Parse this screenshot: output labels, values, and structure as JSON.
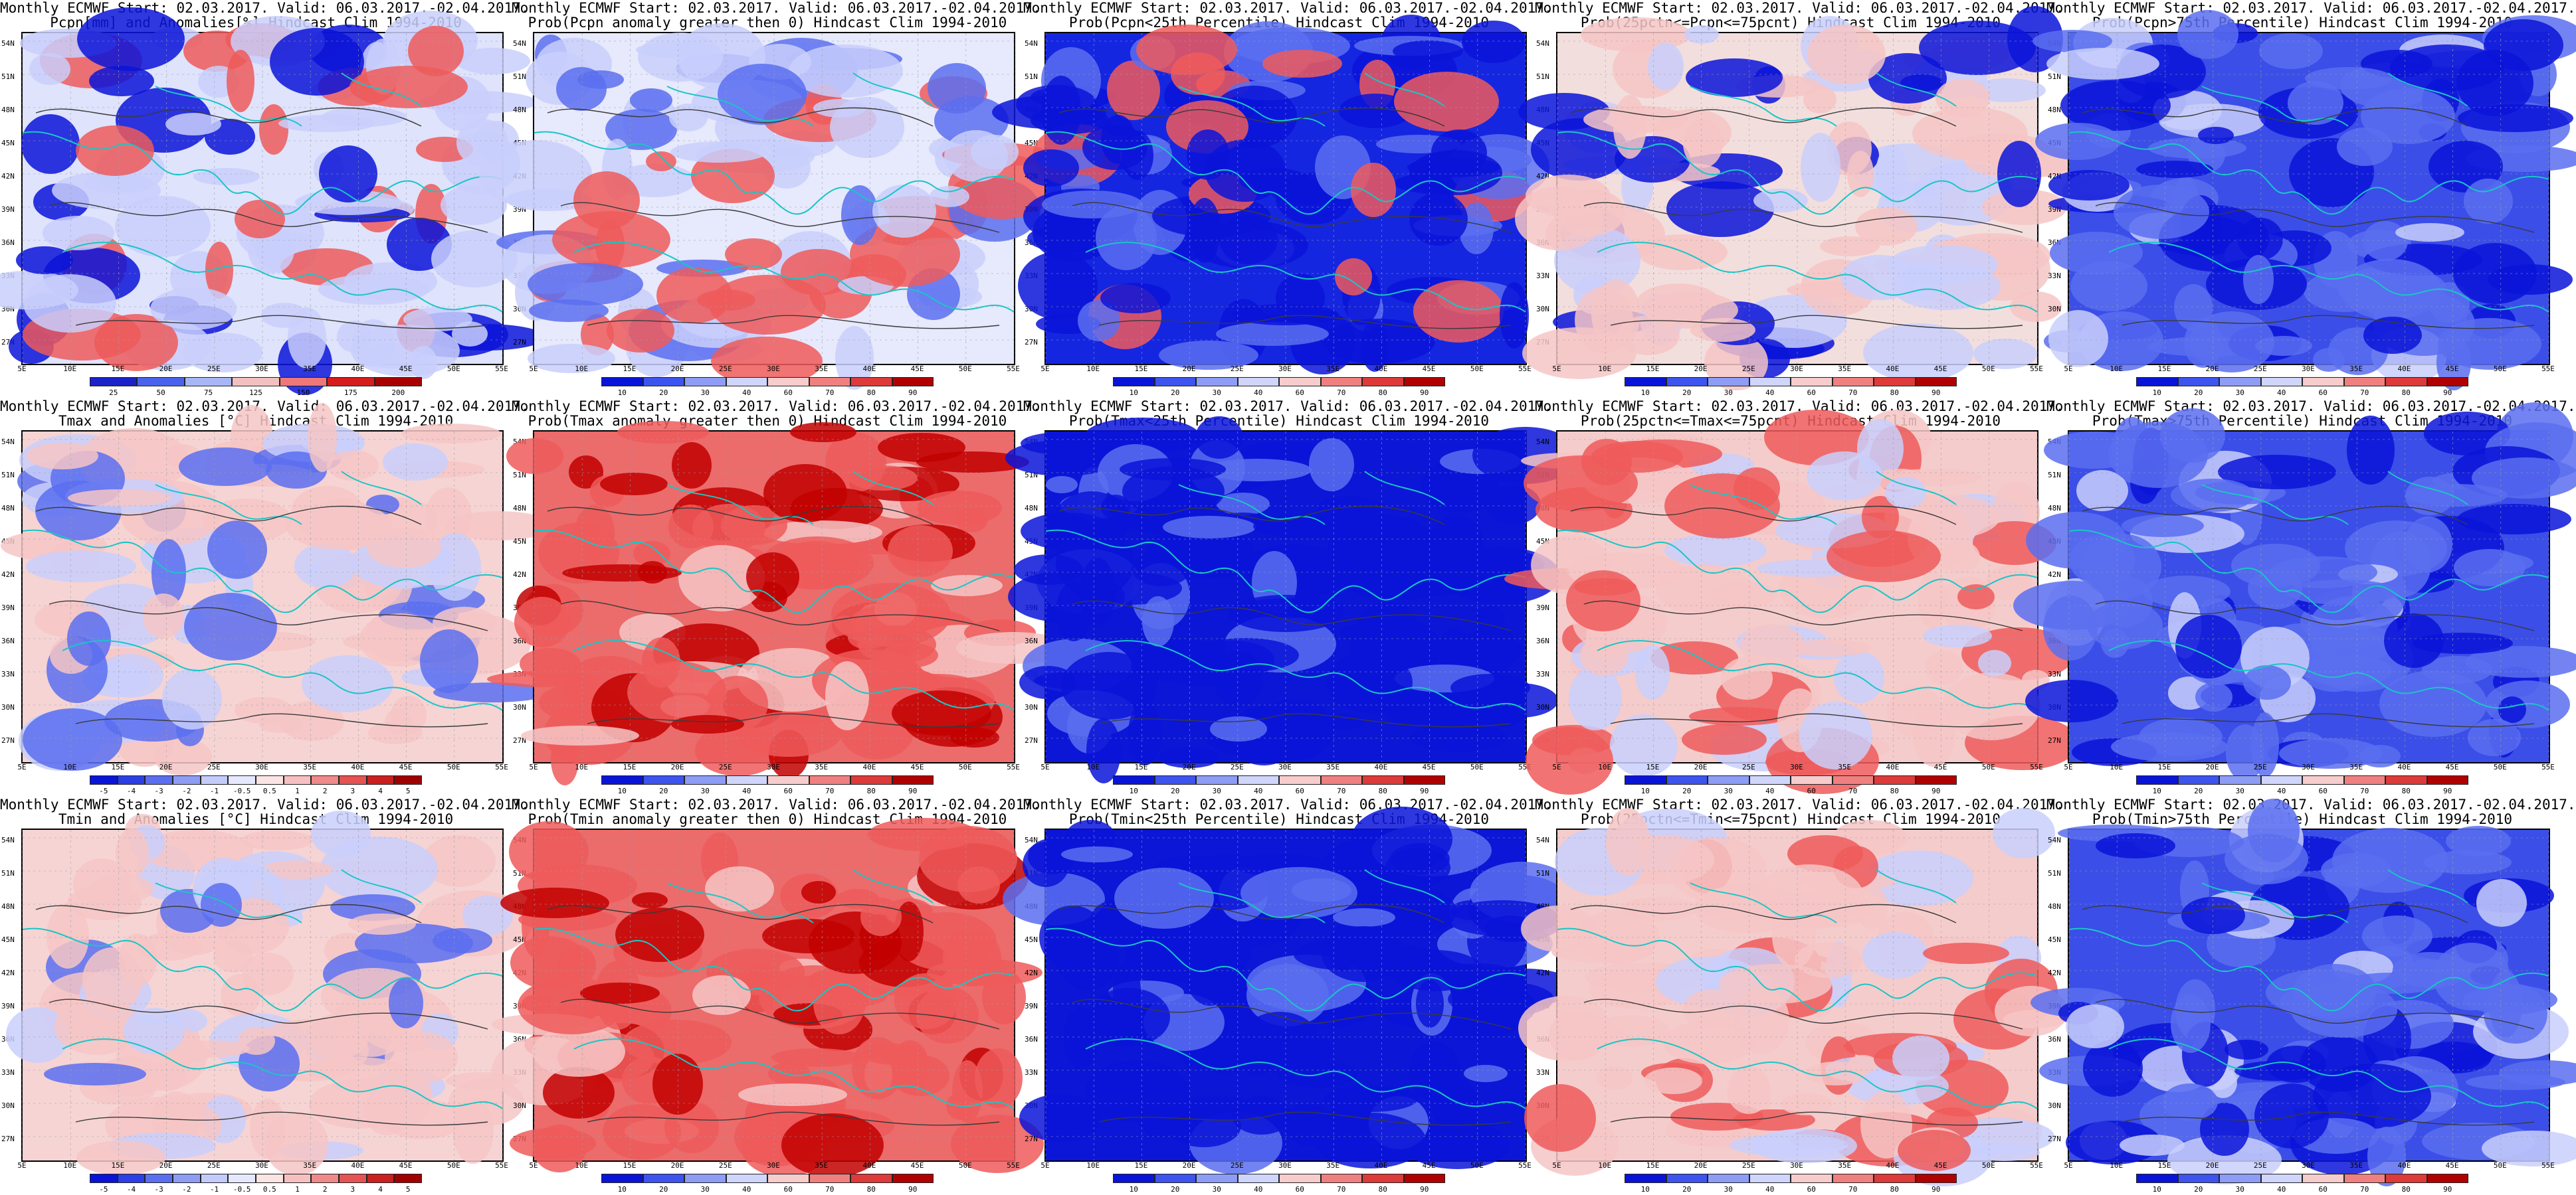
{
  "common": {
    "title_line1": "Monthly ECMWF Start: 02.03.2017. Valid: 06.03.2017.-02.04.2017.",
    "lat_labels": [
      "54N",
      "51N",
      "48N",
      "45N",
      "42N",
      "39N",
      "36N",
      "33N",
      "30N",
      "27N"
    ],
    "lon_labels": [
      "5E",
      "10E",
      "15E",
      "20E",
      "25E",
      "30E",
      "35E",
      "40E",
      "45E",
      "50E",
      "55E"
    ],
    "colors": {
      "land_contour": "#3a3a3a",
      "coast": "#19c6c6",
      "deep_blue": "#0a14d8",
      "mid_blue": "#5b6ff0",
      "light_blue": "#c9cffc",
      "light_red": "#f6c6c6",
      "mid_red": "#ef5a5a",
      "deep_red": "#c20000"
    }
  },
  "scales": {
    "pcpn": [
      "25",
      "50",
      "75",
      "125",
      "150",
      "175",
      "200"
    ],
    "prob": [
      "10",
      "20",
      "30",
      "40",
      "60",
      "70",
      "80",
      "90"
    ],
    "anom": [
      "-5",
      "-4",
      "-3",
      "-2",
      "-1",
      "-0.5",
      "0.5",
      "1",
      "2",
      "3",
      "4",
      "5"
    ]
  },
  "panels": [
    {
      "title2": "Pcpn[mm] and Anomalies[%] Hindcast Clim 1994-2010",
      "scale": "pcpn",
      "palette": "precip_anom"
    },
    {
      "title2": "Prob(Pcpn anomaly greater then 0) Hindcast Clim 1994-2010",
      "scale": "prob",
      "palette": "precip_prob"
    },
    {
      "title2": "Prob(Pcpn<25th Percentile) Hindcast Clim 1994-2010",
      "scale": "prob",
      "palette": "blue_low"
    },
    {
      "title2": "Prob(25pctn<=Pcpn<=75pcnt) Hindcast Clim 1994-2010",
      "scale": "prob",
      "palette": "neutral"
    },
    {
      "title2": "Prob(Pcpn>75th Percentile) Hindcast Clim 1994-2010",
      "scale": "prob",
      "palette": "blue_mid"
    },
    {
      "title2": "Tmax and Anomalies [°C] Hindcast Clim 1994-2010",
      "scale": "anom",
      "palette": "warm_light"
    },
    {
      "title2": "Prob(Tmax anomaly greater then 0) Hindcast Clim 1994-2010",
      "scale": "prob",
      "palette": "warm_strong"
    },
    {
      "title2": "Prob(Tmax<25th Percentile) Hindcast Clim 1994-2010",
      "scale": "prob",
      "palette": "blue_deep"
    },
    {
      "title2": "Prob(25pctn<=Tmax<=75pcnt) Hindcast Clim 1994-2010",
      "scale": "prob",
      "palette": "neutral_warm"
    },
    {
      "title2": "Prob(Tmax>75th Percentile) Hindcast Clim 1994-2010",
      "scale": "prob",
      "palette": "blue_mid"
    },
    {
      "title2": "Tmin and Anomalies [°C] Hindcast Clim 1994-2010",
      "scale": "anom",
      "palette": "warm_light"
    },
    {
      "title2": "Prob(Tmin anomaly greater then 0) Hindcast Clim 1994-2010",
      "scale": "prob",
      "palette": "warm_strong"
    },
    {
      "title2": "Prob(Tmin<25th Percentile) Hindcast Clim 1994-2010",
      "scale": "prob",
      "palette": "blue_deep"
    },
    {
      "title2": "Prob(25pctn<=Tmin<=75pcnt) Hindcast Clim 1994-2010",
      "scale": "prob",
      "palette": "neutral_warm"
    },
    {
      "title2": "Prob(Tmin>75th Percentile) Hindcast Clim 1994-2010",
      "scale": "prob",
      "palette": "blue_mid"
    }
  ]
}
